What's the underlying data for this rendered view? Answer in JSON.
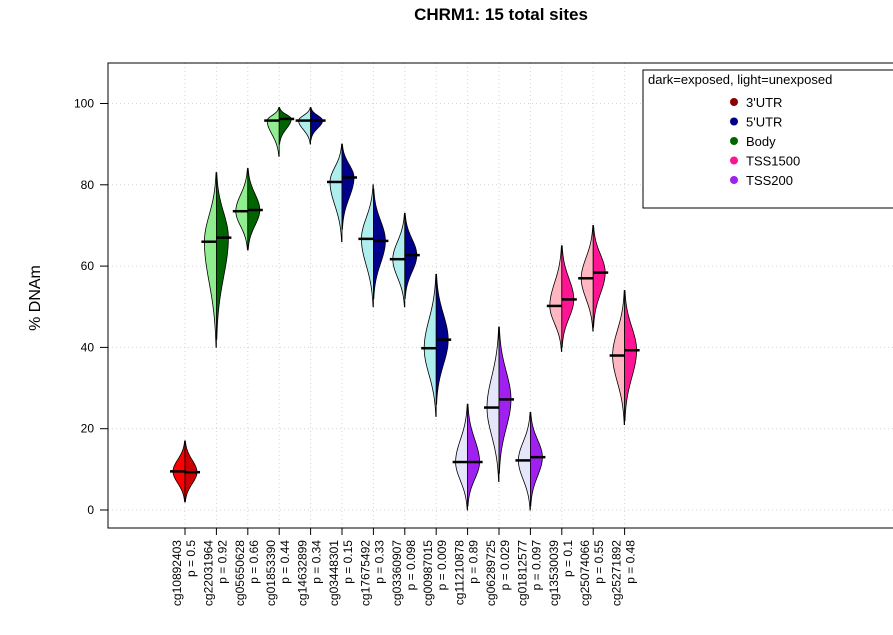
{
  "chart_data": {
    "type": "violin",
    "title": "CHRM1: 15 total sites",
    "ylabel": "% DNAm",
    "xlabel": "",
    "ylim": [
      -5,
      110
    ],
    "yticks": [
      0,
      20,
      40,
      60,
      80,
      100
    ],
    "grid": true,
    "legend": {
      "title": "dark=exposed, light=unexposed",
      "position": "top-right",
      "entries": [
        {
          "name": "3'UTR",
          "color": "#8b0000"
        },
        {
          "name": "5'UTR",
          "color": "#00008b"
        },
        {
          "name": "Body",
          "color": "#006400"
        },
        {
          "name": "TSS1500",
          "color": "#ff1493"
        },
        {
          "name": "TSS200",
          "color": "#a020f0"
        }
      ]
    },
    "sites": [
      {
        "cpg": "cg10892403",
        "p": "p = 0.5",
        "region": "3'UTR",
        "unexposed_median": 9.5,
        "exposed_median": 9.3,
        "unexposed_range": [
          2,
          17
        ],
        "exposed_range": [
          2,
          17
        ],
        "light": "#ff0000",
        "dark": "#cc0000"
      },
      {
        "cpg": "cg22031964",
        "p": "p = 0.92",
        "region": "Body",
        "unexposed_median": 66,
        "exposed_median": 67,
        "unexposed_range": [
          40,
          83
        ],
        "exposed_range": [
          42,
          83
        ],
        "light": "#90ee90",
        "dark": "#006400"
      },
      {
        "cpg": "cg05650628",
        "p": "p = 0.66",
        "region": "Body",
        "unexposed_median": 73.5,
        "exposed_median": 73.8,
        "unexposed_range": [
          64,
          84
        ],
        "exposed_range": [
          64,
          84
        ],
        "light": "#90ee90",
        "dark": "#006400"
      },
      {
        "cpg": "cg01853390",
        "p": "p = 0.44",
        "region": "Body",
        "unexposed_median": 95.8,
        "exposed_median": 96.2,
        "unexposed_range": [
          87,
          99
        ],
        "exposed_range": [
          90,
          99
        ],
        "light": "#90ee90",
        "dark": "#006400"
      },
      {
        "cpg": "cg14632899",
        "p": "p = 0.34",
        "region": "5'UTR",
        "unexposed_median": 95.8,
        "exposed_median": 95.8,
        "unexposed_range": [
          90,
          99
        ],
        "exposed_range": [
          91,
          99
        ],
        "light": "#afeeee",
        "dark": "#00008b"
      },
      {
        "cpg": "cg03448301",
        "p": "p = 0.15",
        "region": "5'UTR",
        "unexposed_median": 80.7,
        "exposed_median": 81.8,
        "unexposed_range": [
          66,
          90
        ],
        "exposed_range": [
          69,
          90
        ],
        "light": "#afeeee",
        "dark": "#00008b"
      },
      {
        "cpg": "cg17675492",
        "p": "p = 0.33",
        "region": "5'UTR",
        "unexposed_median": 66.7,
        "exposed_median": 66.2,
        "unexposed_range": [
          50,
          80
        ],
        "exposed_range": [
          52,
          79
        ],
        "light": "#afeeee",
        "dark": "#00008b"
      },
      {
        "cpg": "cg03360907",
        "p": "p = 0.098",
        "region": "5'UTR",
        "unexposed_median": 61.7,
        "exposed_median": 62.7,
        "unexposed_range": [
          50,
          73
        ],
        "exposed_range": [
          52,
          73
        ],
        "light": "#afeeee",
        "dark": "#00008b"
      },
      {
        "cpg": "cg00987015",
        "p": "p = 0.009",
        "region": "5'UTR",
        "unexposed_median": 39.8,
        "exposed_median": 41.9,
        "unexposed_range": [
          23,
          58
        ],
        "exposed_range": [
          26,
          58
        ],
        "light": "#afeeee",
        "dark": "#00008b"
      },
      {
        "cpg": "cg11210878",
        "p": "p = 0.89",
        "region": "TSS200",
        "unexposed_median": 11.8,
        "exposed_median": 11.8,
        "unexposed_range": [
          0,
          26
        ],
        "exposed_range": [
          1,
          26
        ],
        "light": "#e6e6fa",
        "dark": "#a020f0"
      },
      {
        "cpg": "cg06289725",
        "p": "p = 0.029",
        "region": "TSS200",
        "unexposed_median": 25.2,
        "exposed_median": 27.2,
        "unexposed_range": [
          7,
          45
        ],
        "exposed_range": [
          9,
          45
        ],
        "light": "#e6e6fa",
        "dark": "#a020f0"
      },
      {
        "cpg": "cg01812577",
        "p": "p = 0.097",
        "region": "TSS200",
        "unexposed_median": 12.2,
        "exposed_median": 13.0,
        "unexposed_range": [
          0,
          24
        ],
        "exposed_range": [
          1,
          24
        ],
        "light": "#e6e6fa",
        "dark": "#a020f0"
      },
      {
        "cpg": "cg13530039",
        "p": "p = 0.1",
        "region": "TSS1500",
        "unexposed_median": 50.2,
        "exposed_median": 51.8,
        "unexposed_range": [
          39,
          65
        ],
        "exposed_range": [
          40,
          65
        ],
        "light": "#ffb6c1",
        "dark": "#ff1493"
      },
      {
        "cpg": "cg25074066",
        "p": "p = 0.55",
        "region": "TSS1500",
        "unexposed_median": 57.0,
        "exposed_median": 58.4,
        "unexposed_range": [
          44,
          70
        ],
        "exposed_range": [
          45,
          70
        ],
        "light": "#ffb6c1",
        "dark": "#ff1493"
      },
      {
        "cpg": "cg25271892",
        "p": "p = 0.48",
        "region": "TSS1500",
        "unexposed_median": 38.0,
        "exposed_median": 39.3,
        "unexposed_range": [
          21,
          54
        ],
        "exposed_range": [
          22,
          54
        ],
        "light": "#ffb6c1",
        "dark": "#ff1493"
      }
    ]
  }
}
